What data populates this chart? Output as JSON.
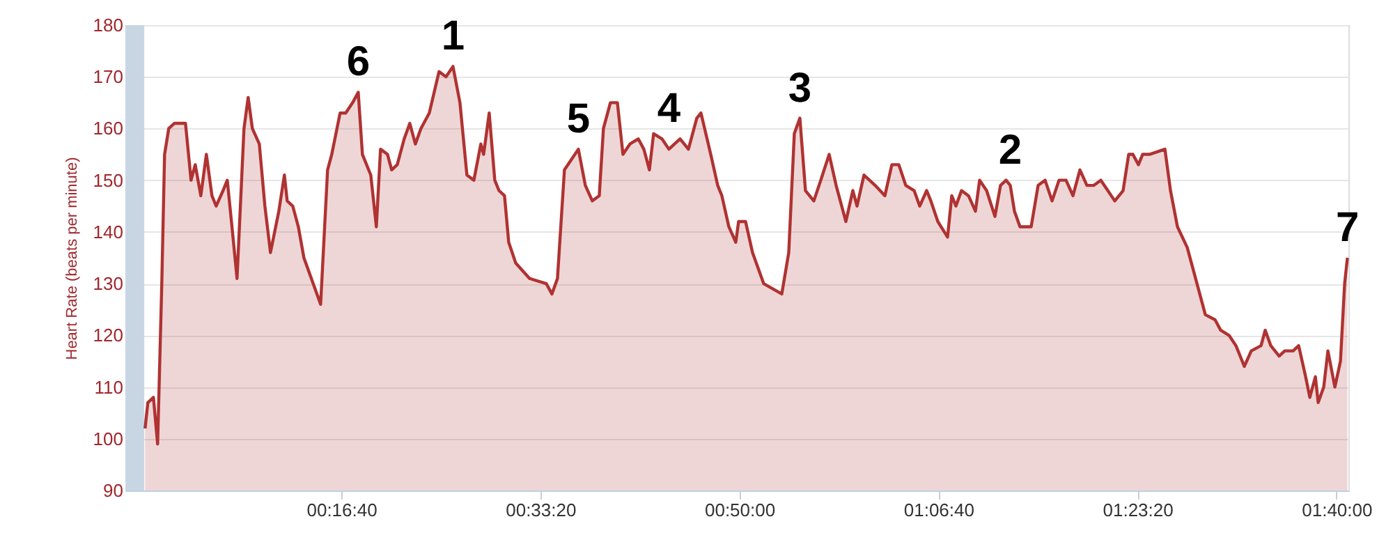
{
  "chart_data": {
    "type": "area",
    "ylabel": "Heart Rate (beats per minute)",
    "x": [
      14,
      28,
      56,
      77,
      98,
      112,
      133,
      161,
      217,
      245,
      266,
      294,
      322,
      350,
      371,
      406,
      427,
      448,
      476,
      511,
      532,
      553,
      588,
      616,
      644,
      686,
      714,
      728,
      756,
      784,
      812,
      896,
      931,
      952,
      994,
      1022,
      1057,
      1085,
      1106,
      1148,
      1176,
      1197,
      1232,
      1253,
      1281,
      1316,
      1344,
      1372,
      1400,
      1442,
      1491,
      1526,
      1561,
      1596,
      1631,
      1666,
      1701,
      1715,
      1743,
      1771,
      1792,
      1820,
      1841,
      1876,
      1946,
      2030,
      2058,
      2086,
      2121,
      2156,
      2191,
      2226,
      2261,
      2296,
      2317,
      2352,
      2387,
      2415,
      2450,
      2492,
      2520,
      2548,
      2569,
      2611,
      2646,
      2674,
      2702,
      2744,
      2786,
      2807,
      2856,
      2891,
      2912,
      2947,
      2982,
      2996,
      3031,
      3066,
      3122,
      3213,
      3248,
      3276,
      3304,
      3332,
      3374,
      3409,
      3451,
      3486,
      3535,
      3570,
      3591,
      3626,
      3654,
      3682,
      3731,
      3766,
      3801,
      3836,
      3878,
      3906,
      3941,
      3962,
      3997,
      4046,
      4067,
      4088,
      4116,
      4151,
      4186,
      4207,
      4242,
      4284,
      4312,
      4340,
      4361,
      4382,
      4410,
      4466,
      4501,
      4536,
      4571,
      4606,
      4641,
      4676,
      4711,
      4746,
      4781,
      4816,
      4851,
      4886,
      4928,
      4956,
      4977,
      5005,
      5026,
      5061,
      5138,
      5166,
      5201,
      5250,
      5292,
      5341,
      5390,
      5418,
      5460,
      5495,
      5537,
      5572,
      5621,
      5642,
      5670,
      5712,
      5740,
      5782,
      5810,
      5845,
      5866,
      5894,
      5908,
      5936,
      5957,
      5992,
      6020,
      6041,
      6055
    ],
    "series": [
      {
        "color": "#b03232",
        "values": [
          102,
          107,
          108,
          99,
          130,
          155,
          160,
          161,
          161,
          150,
          153,
          147,
          155,
          147,
          145,
          148,
          150,
          142,
          131,
          160,
          166,
          160,
          157,
          145,
          136,
          144,
          151,
          146,
          145,
          141,
          135,
          126,
          152,
          155,
          163,
          163,
          165,
          167,
          155,
          151,
          141,
          156,
          155,
          152,
          153,
          158,
          161,
          157,
          160,
          163,
          171,
          170,
          172,
          165,
          151,
          150,
          157,
          155,
          163,
          150,
          148,
          147,
          138,
          134,
          131,
          130,
          128,
          131,
          152,
          154,
          156,
          149,
          146,
          147,
          160,
          165,
          165,
          155,
          157,
          158,
          156,
          152,
          159,
          158,
          156,
          157,
          158,
          156,
          162,
          163,
          155,
          149,
          147,
          141,
          138,
          142,
          142,
          136,
          130,
          128,
          136,
          159,
          162,
          148,
          146,
          150,
          155,
          149,
          142,
          148,
          145,
          151,
          150,
          149,
          147,
          153,
          153,
          149,
          148,
          145,
          148,
          146,
          142,
          139,
          147,
          145,
          148,
          147,
          144,
          150,
          148,
          143,
          149,
          150,
          149,
          144,
          141,
          141,
          149,
          150,
          146,
          150,
          150,
          147,
          152,
          149,
          149,
          150,
          148,
          146,
          148,
          155,
          155,
          153,
          155,
          155,
          156,
          148,
          141,
          137,
          131,
          124,
          123,
          121,
          120,
          118,
          114,
          117,
          118,
          121,
          118,
          116,
          117,
          117,
          118,
          112,
          108,
          112,
          107,
          110,
          117,
          110,
          115,
          130,
          135
        ]
      }
    ],
    "xlim": [
      -85,
      6060
    ],
    "xticks": [
      {
        "value": 1000,
        "label": "00:16:40"
      },
      {
        "value": 2000,
        "label": "00:33:20"
      },
      {
        "value": 3000,
        "label": "00:50:00"
      },
      {
        "value": 4000,
        "label": "01:06:40"
      },
      {
        "value": 5000,
        "label": "01:23:20"
      },
      {
        "value": 6000,
        "label": "01:40:00"
      }
    ],
    "ylim": [
      90,
      180
    ],
    "yticks": [
      90,
      100,
      110,
      120,
      130,
      140,
      150,
      160,
      170,
      180
    ],
    "grid": "y",
    "bands": [
      {
        "axis": "x",
        "from": -85,
        "to": 10,
        "color": "#c8d6e4"
      }
    ],
    "annotations": [
      {
        "text": "1",
        "x": 1561,
        "y": 172
      },
      {
        "text": "2",
        "x": 4361,
        "y": 150
      },
      {
        "text": "3",
        "x": 3304,
        "y": 162
      },
      {
        "text": "4",
        "x": 2646,
        "y": 158
      },
      {
        "text": "5",
        "x": 2191,
        "y": 156
      },
      {
        "text": "6",
        "x": 1085,
        "y": 167
      },
      {
        "text": "7",
        "x": 6055,
        "y": 135
      }
    ]
  }
}
